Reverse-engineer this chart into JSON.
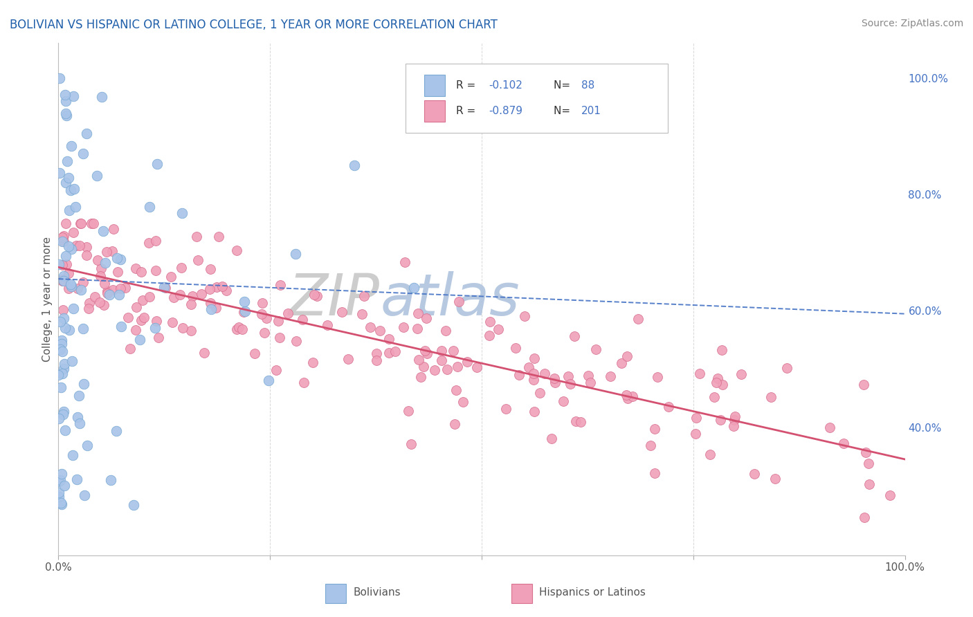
{
  "title": "BOLIVIAN VS HISPANIC OR LATINO COLLEGE, 1 YEAR OR MORE CORRELATION CHART",
  "source_text": "Source: ZipAtlas.com",
  "ylabel": "College, 1 year or more",
  "xlim": [
    0.0,
    1.0
  ],
  "ylim": [
    0.18,
    1.06
  ],
  "ytick_right_values": [
    0.4,
    0.6,
    0.8,
    1.0
  ],
  "ytick_right_labels": [
    "40.0%",
    "60.0%",
    "80.0%",
    "100.0%"
  ],
  "blue_color": "#A8C4E8",
  "blue_edge": "#7AAAD4",
  "blue_line_color": "#4472C4",
  "pink_color": "#F0A0B8",
  "pink_edge": "#D87090",
  "pink_line_color": "#D45070",
  "legend_text_color": "#4472C4",
  "title_color": "#1F5FAA",
  "source_color": "#888888",
  "watermark_zip_color": "#CCCCCC",
  "watermark_atlas_color": "#AABBDD",
  "grid_color": "#D8D8D8",
  "background_color": "#FFFFFF",
  "blue_trendline_start_y": 0.655,
  "blue_trendline_end_y": 0.595,
  "pink_trendline_start_y": 0.675,
  "pink_trendline_end_y": 0.345
}
